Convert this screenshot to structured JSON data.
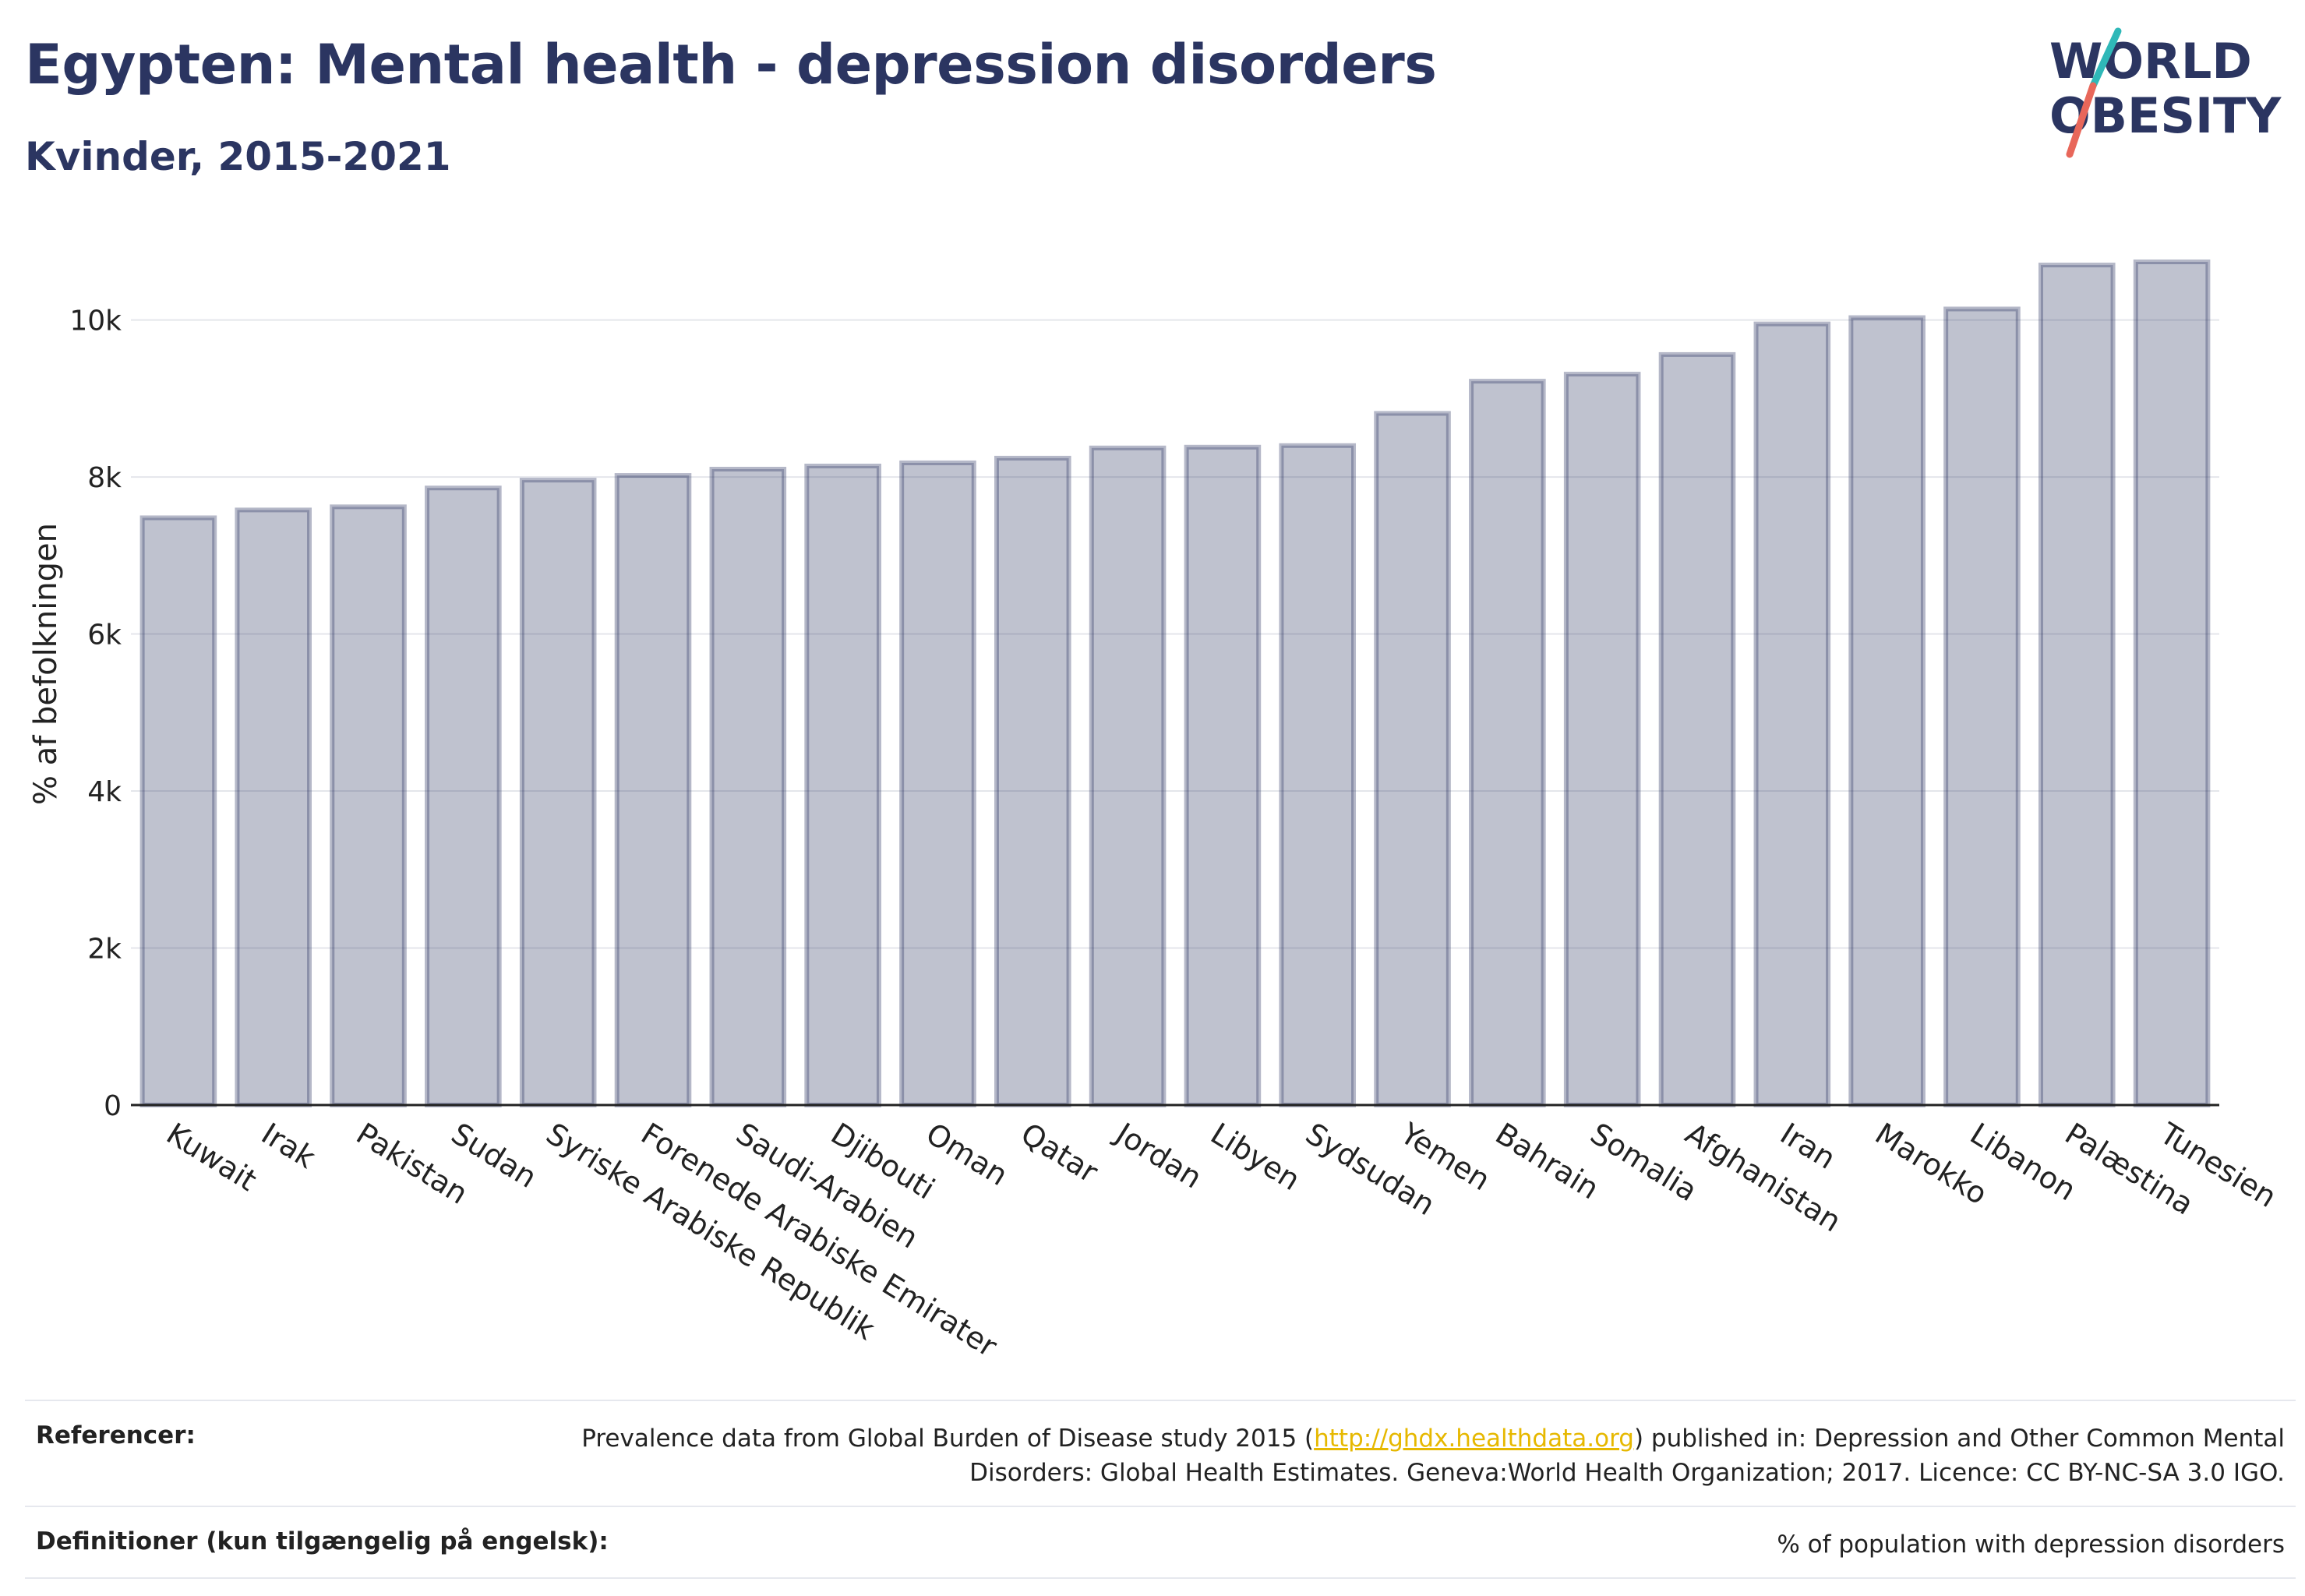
{
  "header": {
    "title": "Egypten: Mental health - depression disorders",
    "subtitle": "Kvinder, 2015-2021"
  },
  "logo": {
    "line1": "WORLD",
    "line2": "OBESITY",
    "colors": {
      "text": "#2b3561",
      "teal": "#2fb8b8",
      "coral": "#e8675a"
    }
  },
  "chart_data": {
    "type": "bar",
    "ylabel": "% af befolkningen",
    "ylim": [
      0,
      10800
    ],
    "yticks": [
      0,
      2000,
      4000,
      6000,
      8000,
      10000
    ],
    "ytick_labels": [
      "0",
      "2k",
      "4k",
      "6k",
      "8k",
      "10k"
    ],
    "grid": true,
    "bar_color": "#2b3561",
    "categories": [
      "Kuwait",
      "Irak",
      "Pakistan",
      "Sudan",
      "Syriske Arabiske Republik",
      "Forenede Arabiske Emirater",
      "Saudi-Arabien",
      "Djibouti",
      "Oman",
      "Qatar",
      "Jordan",
      "Libyen",
      "Sydsudan",
      "Yemen",
      "Bahrain",
      "Somalia",
      "Afghanistan",
      "Iran",
      "Marokko",
      "Libanon",
      "Palæstina",
      "Tunesien"
    ],
    "values": [
      7480,
      7580,
      7620,
      7860,
      7960,
      8020,
      8100,
      8140,
      8180,
      8240,
      8370,
      8380,
      8400,
      8810,
      9220,
      9310,
      9560,
      9950,
      10030,
      10140,
      10700,
      10740
    ]
  },
  "footer": {
    "references_label": "Referencer:",
    "references_pre": "Prevalence data from Global Burden of Disease study 2015 (",
    "references_link": "http://ghdx.healthdata.org",
    "references_post": ") published in: Depression and Other Common Mental Disorders: Global Health Estimates. Geneva:World Health Organization; 2017. Licence: CC BY-NC-SA 3.0 IGO.",
    "definitions_label": "Definitioner (kun tilgængelig på engelsk):",
    "definitions_text": "% of population with depression disorders"
  }
}
